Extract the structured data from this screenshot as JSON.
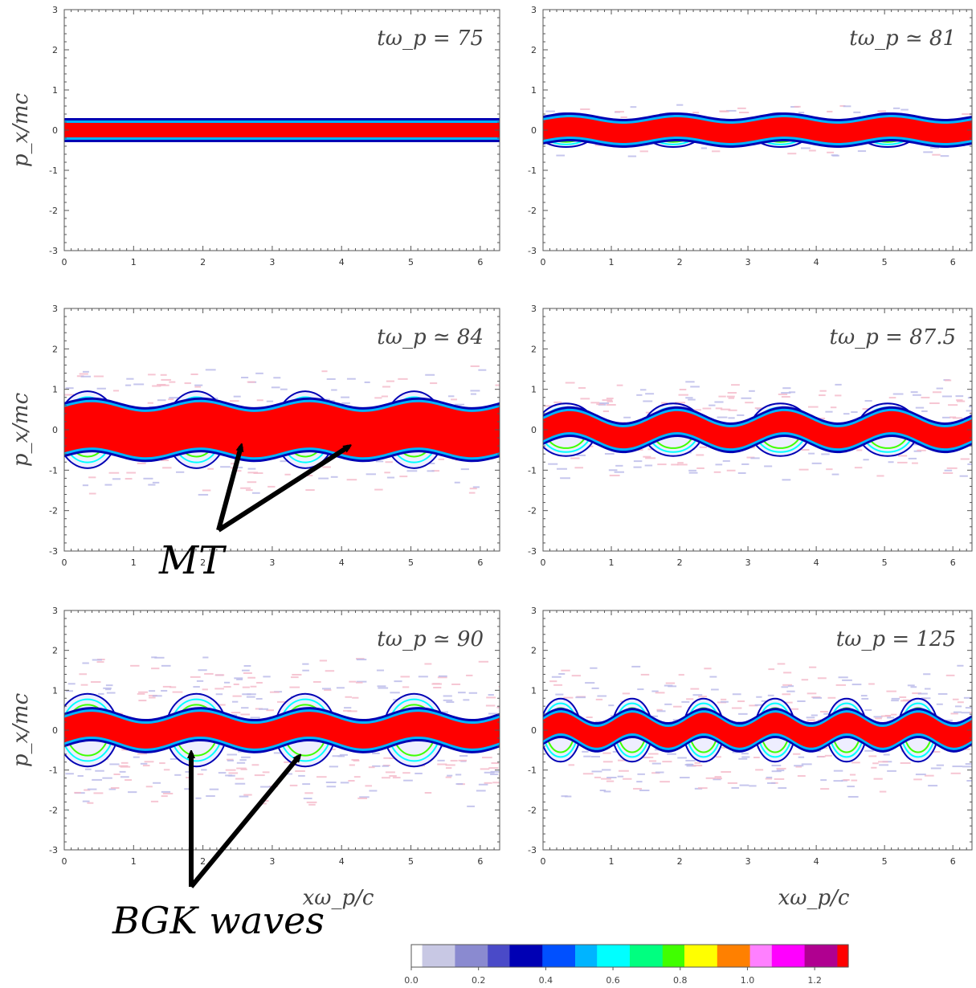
{
  "figure": {
    "colormap": [
      "#ffffff",
      "#c8c8e4",
      "#8a8ad0",
      "#4a4ac8",
      "#0000b4",
      "#0050ff",
      "#00b4ff",
      "#00ffff",
      "#00ff80",
      "#40ff00",
      "#ffff00",
      "#ff8000",
      "#ff80ff",
      "#ff00ff",
      "#b00090",
      "#ff0000"
    ],
    "colorbar": {
      "ticks": [
        "0.0",
        "0.2",
        "0.4",
        "0.6",
        "0.8",
        "1.0",
        "1.2"
      ],
      "range": [
        0,
        1.3
      ]
    },
    "annotations": {
      "mt_label": "MT",
      "bgk_label": "BGK waves"
    }
  },
  "chart_data": [
    {
      "type": "heatmap",
      "panel": "top-left",
      "title": "tω_p = 75",
      "time": 75,
      "xlabel": "",
      "ylabel": "p_x/mc",
      "xlim": [
        0,
        6.28
      ],
      "ylim": [
        -3,
        3
      ],
      "xticks": [
        "0",
        "1",
        "2",
        "3",
        "4",
        "5",
        "6"
      ],
      "yticks": [
        "-3",
        "-2",
        "-1",
        "0",
        "1",
        "2",
        "3"
      ],
      "core_halfwidth": 0.22,
      "wave_amplitude": 0,
      "vortex_count": 0,
      "halo_extent": 0
    },
    {
      "type": "heatmap",
      "panel": "top-right",
      "title": "tω_p ≃ 81",
      "time": 81,
      "xlabel": "",
      "ylabel": "",
      "xlim": [
        0,
        6.28
      ],
      "ylim": [
        -3,
        3
      ],
      "xticks": [
        "0",
        "1",
        "2",
        "3",
        "4",
        "5",
        "6"
      ],
      "yticks": [
        "-3",
        "-2",
        "-1",
        "0",
        "1",
        "2",
        "3"
      ],
      "core_halfwidth": 0.28,
      "wave_amplitude": 0.08,
      "vortex_count": 4,
      "halo_extent": 0.4
    },
    {
      "type": "heatmap",
      "panel": "middle-left",
      "title": "tω_p ≃ 84",
      "time": 84,
      "xlabel": "",
      "ylabel": "p_x/mc",
      "xlim": [
        0,
        6.28
      ],
      "ylim": [
        -3,
        3
      ],
      "xticks": [
        "0",
        "1",
        "2",
        "3",
        "4",
        "5",
        "6"
      ],
      "yticks": [
        "-3",
        "-2",
        "-1",
        "0",
        "1",
        "2",
        "3"
      ],
      "core_halfwidth": 0.6,
      "wave_amplitude": 0.12,
      "vortex_count": 4,
      "halo_extent": 1.0
    },
    {
      "type": "heatmap",
      "panel": "middle-right",
      "title": "tω_p = 87.5",
      "time": 87.5,
      "xlabel": "",
      "ylabel": "",
      "xlim": [
        0,
        6.28
      ],
      "ylim": [
        -3,
        3
      ],
      "xticks": [
        "0",
        "1",
        "2",
        "3",
        "4",
        "5",
        "6"
      ],
      "yticks": [
        "-3",
        "-2",
        "-1",
        "0",
        "1",
        "2",
        "3"
      ],
      "core_halfwidth": 0.3,
      "wave_amplitude": 0.2,
      "vortex_count": 4,
      "halo_extent": 1.0
    },
    {
      "type": "heatmap",
      "panel": "bottom-left",
      "title": "tω_p ≃ 90",
      "time": 90,
      "xlabel": "xω_p/c",
      "ylabel": "p_x/mc",
      "xlim": [
        0,
        6.28
      ],
      "ylim": [
        -3,
        3
      ],
      "xticks": [
        "0",
        "1",
        "2",
        "3",
        "4",
        "5",
        "6"
      ],
      "yticks": [
        "-3",
        "-2",
        "-1",
        "0",
        "1",
        "2",
        "3"
      ],
      "core_halfwidth": 0.35,
      "wave_amplitude": 0.15,
      "vortex_count": 4,
      "halo_extent": 1.6
    },
    {
      "type": "heatmap",
      "panel": "bottom-right",
      "title": "tω_p = 125",
      "time": 125,
      "xlabel": "xω_p/c",
      "ylabel": "",
      "xlim": [
        0,
        6.28
      ],
      "ylim": [
        -3,
        3
      ],
      "xticks": [
        "0",
        "1",
        "2",
        "3",
        "4",
        "5",
        "6"
      ],
      "yticks": [
        "-3",
        "-2",
        "-1",
        "0",
        "1",
        "2",
        "3"
      ],
      "core_halfwidth": 0.3,
      "wave_amplitude": 0.18,
      "vortex_count": 6,
      "halo_extent": 1.4
    }
  ]
}
